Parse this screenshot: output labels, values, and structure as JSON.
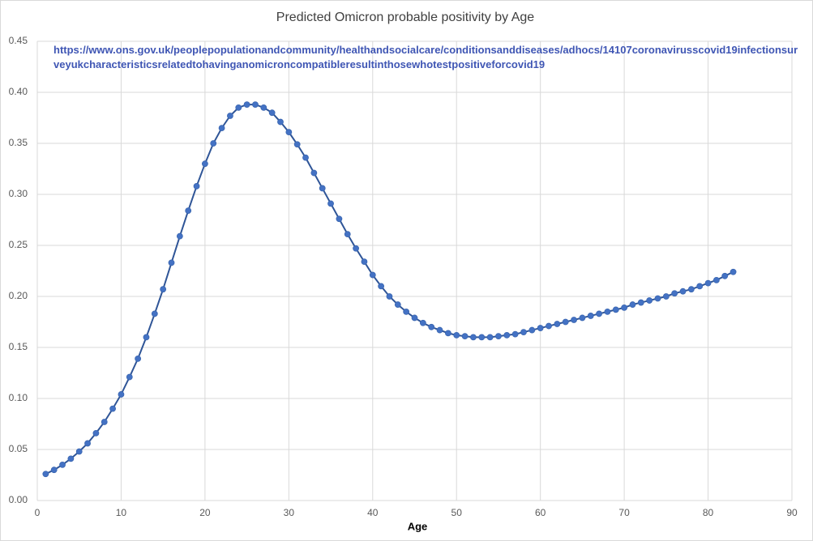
{
  "chart_data": {
    "type": "line",
    "title": "Predicted Omicron probable positivity by Age",
    "annotation": "https://www.ons.gov.uk/peoplepopulationandcommunity/healthandsocialcare/conditionsanddiseases/adhocs/14107coronavirusscovid19infectionsurveyukcharacteristicsrelatedtohavinganomicroncompatibleresultinthosewhotestpositiveforcovid19",
    "x_label": "Age",
    "x": [
      1,
      2,
      3,
      4,
      5,
      6,
      7,
      8,
      9,
      10,
      11,
      12,
      13,
      14,
      15,
      16,
      17,
      18,
      19,
      20,
      21,
      22,
      23,
      24,
      25,
      26,
      27,
      28,
      29,
      30,
      31,
      32,
      33,
      34,
      35,
      36,
      37,
      38,
      39,
      40,
      41,
      42,
      43,
      44,
      45,
      46,
      47,
      48,
      49,
      50,
      51,
      52,
      53,
      54,
      55,
      56,
      57,
      58,
      59,
      60,
      61,
      62,
      63,
      64,
      65,
      66,
      67,
      68,
      69,
      70,
      71,
      72,
      73,
      74,
      75,
      76,
      77,
      78,
      79,
      80,
      81,
      82,
      83
    ],
    "series": [
      {
        "color": "#4472c4",
        "values": [
          0.026,
          0.03,
          0.035,
          0.041,
          0.048,
          0.056,
          0.066,
          0.077,
          0.09,
          0.104,
          0.121,
          0.139,
          0.16,
          0.183,
          0.207,
          0.233,
          0.259,
          0.284,
          0.308,
          0.33,
          0.35,
          0.365,
          0.377,
          0.385,
          0.388,
          0.388,
          0.385,
          0.38,
          0.371,
          0.361,
          0.349,
          0.336,
          0.321,
          0.306,
          0.291,
          0.276,
          0.261,
          0.247,
          0.234,
          0.221,
          0.21,
          0.2,
          0.192,
          0.185,
          0.179,
          0.174,
          0.17,
          0.167,
          0.164,
          0.162,
          0.161,
          0.16,
          0.16,
          0.16,
          0.161,
          0.162,
          0.163,
          0.165,
          0.167,
          0.169,
          0.171,
          0.173,
          0.175,
          0.177,
          0.179,
          0.181,
          0.183,
          0.185,
          0.187,
          0.189,
          0.192,
          0.194,
          0.196,
          0.198,
          0.2,
          0.203,
          0.205,
          0.207,
          0.21,
          0.213,
          0.216,
          0.22,
          0.224
        ]
      }
    ],
    "xlim": [
      0,
      90
    ],
    "xticks": [
      0,
      10,
      20,
      30,
      40,
      50,
      60,
      70,
      80,
      90
    ],
    "ylim": [
      0,
      0.45
    ],
    "yticks": [
      {
        "value": 0,
        "label": "0.00"
      },
      {
        "value": 0.05,
        "label": "0.05"
      },
      {
        "value": 0.1,
        "label": "0.10"
      },
      {
        "value": 0.15,
        "label": "0.15"
      },
      {
        "value": 0.2,
        "label": "0.20"
      },
      {
        "value": 0.25,
        "label": "0.25"
      },
      {
        "value": 0.3,
        "label": "0.30"
      },
      {
        "value": 0.35,
        "label": "0.35"
      },
      {
        "value": 0.4,
        "label": "0.40"
      },
      {
        "value": 0.45,
        "label": "0.45"
      }
    ],
    "grid": true
  }
}
